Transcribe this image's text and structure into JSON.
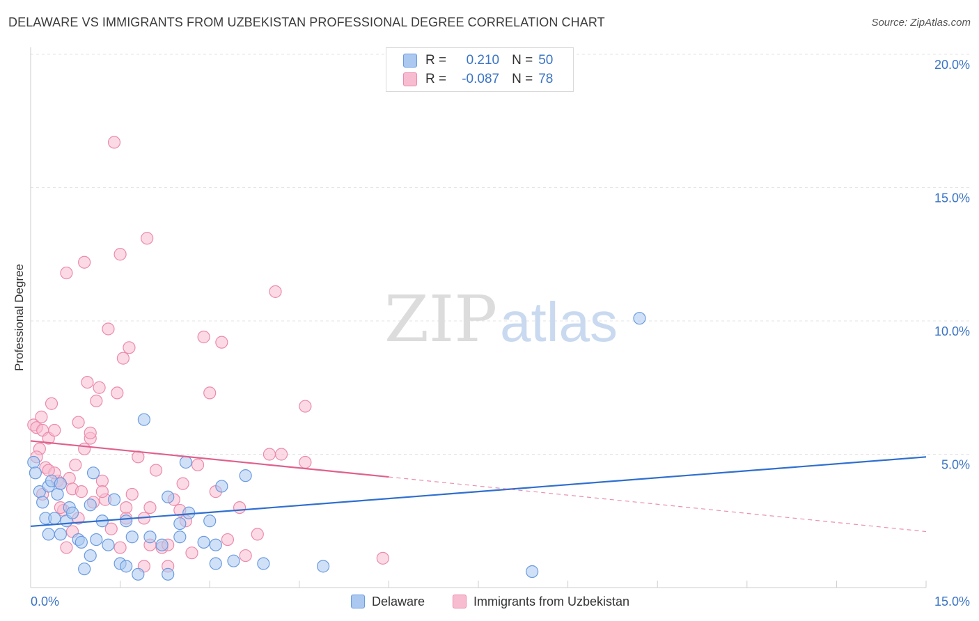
{
  "title": "DELAWARE VS IMMIGRANTS FROM UZBEKISTAN PROFESSIONAL DEGREE CORRELATION CHART",
  "source": "Source: ZipAtlas.com",
  "watermark": {
    "zip": "ZIP",
    "atlas": "atlas"
  },
  "legend": {
    "rows": [
      {
        "r_label": "R =",
        "r_value": "0.210",
        "n_label": "N =",
        "n_value": "50"
      },
      {
        "r_label": "R =",
        "r_value": "-0.087",
        "n_label": "N =",
        "n_value": "78"
      }
    ]
  },
  "colors": {
    "blue_fill": "#aac8f0",
    "blue_stroke": "#6a9be0",
    "blue_line": "#2f6fcf",
    "pink_fill": "#f7bcd0",
    "pink_stroke": "#ec8aaa",
    "pink_line": "#e0608e",
    "grid": "#e3e3e3",
    "tick_text": "#3b74c4"
  },
  "chart_data": {
    "type": "scatter",
    "title": "DELAWARE VS IMMIGRANTS FROM UZBEKISTAN PROFESSIONAL DEGREE CORRELATION CHART",
    "xlabel": "",
    "ylabel": "Professional Degree",
    "xlim": [
      0,
      15
    ],
    "ylim": [
      0,
      20
    ],
    "x_tick_labels": [
      "0.0%",
      "15.0%"
    ],
    "y_ticks": [
      5,
      10,
      15,
      20
    ],
    "y_tick_labels": [
      "5.0%",
      "10.0%",
      "15.0%",
      "20.0%"
    ],
    "series": [
      {
        "name": "Delaware",
        "r": 0.21,
        "n": 50,
        "trend": {
          "x0": 0,
          "y0": 2.3,
          "x1": 15,
          "y1": 4.9
        },
        "points": [
          [
            0.05,
            4.7
          ],
          [
            0.08,
            4.3
          ],
          [
            0.15,
            3.6
          ],
          [
            0.2,
            3.2
          ],
          [
            0.25,
            2.6
          ],
          [
            0.3,
            3.8
          ],
          [
            0.35,
            4.0
          ],
          [
            0.4,
            2.6
          ],
          [
            0.45,
            3.5
          ],
          [
            0.5,
            3.9
          ],
          [
            0.6,
            2.5
          ],
          [
            0.65,
            3.0
          ],
          [
            0.7,
            2.8
          ],
          [
            0.8,
            1.8
          ],
          [
            0.85,
            1.7
          ],
          [
            0.9,
            0.7
          ],
          [
            1.0,
            3.1
          ],
          [
            1.05,
            4.3
          ],
          [
            1.1,
            1.8
          ],
          [
            1.2,
            2.5
          ],
          [
            1.3,
            1.6
          ],
          [
            1.4,
            3.3
          ],
          [
            1.5,
            0.9
          ],
          [
            1.6,
            2.5
          ],
          [
            1.7,
            1.9
          ],
          [
            1.8,
            0.5
          ],
          [
            1.9,
            6.3
          ],
          [
            1.6,
            0.8
          ],
          [
            2.2,
            1.6
          ],
          [
            2.3,
            0.5
          ],
          [
            2.5,
            1.9
          ],
          [
            2.5,
            2.4
          ],
          [
            2.6,
            4.7
          ],
          [
            2.65,
            2.8
          ],
          [
            2.9,
            1.7
          ],
          [
            3.0,
            2.5
          ],
          [
            3.1,
            0.9
          ],
          [
            3.2,
            3.8
          ],
          [
            3.4,
            1.0
          ],
          [
            3.6,
            4.2
          ],
          [
            3.9,
            0.9
          ],
          [
            4.9,
            0.8
          ],
          [
            10.2,
            10.1
          ],
          [
            8.4,
            0.6
          ],
          [
            0.5,
            2.0
          ],
          [
            1.0,
            1.2
          ],
          [
            2.0,
            1.9
          ],
          [
            3.1,
            1.6
          ],
          [
            2.3,
            3.4
          ],
          [
            0.3,
            2.0
          ]
        ]
      },
      {
        "name": "Immigrants from Uzbekistan",
        "r": -0.087,
        "n": 78,
        "trend": {
          "x0": 0,
          "y0": 5.5,
          "x1": 6,
          "y1": 4.15
        },
        "trend_dashed": {
          "x0": 6,
          "y0": 4.15,
          "x1": 15,
          "y1": 2.1
        },
        "points": [
          [
            0.05,
            6.1
          ],
          [
            0.1,
            6.0
          ],
          [
            0.15,
            5.2
          ],
          [
            0.18,
            6.4
          ],
          [
            0.2,
            5.9
          ],
          [
            0.25,
            4.5
          ],
          [
            0.3,
            5.6
          ],
          [
            0.35,
            6.9
          ],
          [
            0.4,
            5.9
          ],
          [
            0.45,
            4.0
          ],
          [
            0.5,
            3.9
          ],
          [
            0.55,
            2.9
          ],
          [
            0.6,
            11.8
          ],
          [
            0.65,
            4.1
          ],
          [
            0.7,
            3.7
          ],
          [
            0.75,
            4.6
          ],
          [
            0.8,
            6.2
          ],
          [
            0.85,
            3.6
          ],
          [
            0.9,
            12.2
          ],
          [
            0.95,
            7.7
          ],
          [
            1.0,
            5.6
          ],
          [
            1.05,
            3.2
          ],
          [
            1.1,
            7.0
          ],
          [
            1.15,
            7.5
          ],
          [
            1.2,
            4.0
          ],
          [
            1.25,
            3.3
          ],
          [
            1.3,
            9.7
          ],
          [
            1.35,
            2.2
          ],
          [
            1.4,
            16.7
          ],
          [
            1.45,
            7.3
          ],
          [
            1.5,
            12.5
          ],
          [
            1.55,
            8.6
          ],
          [
            1.6,
            3.0
          ],
          [
            1.65,
            9.0
          ],
          [
            1.7,
            3.5
          ],
          [
            1.8,
            4.9
          ],
          [
            1.9,
            2.6
          ],
          [
            1.95,
            13.1
          ],
          [
            2.0,
            3.0
          ],
          [
            2.1,
            4.4
          ],
          [
            2.2,
            1.5
          ],
          [
            2.3,
            0.8
          ],
          [
            2.4,
            3.3
          ],
          [
            2.5,
            2.9
          ],
          [
            2.55,
            3.9
          ],
          [
            2.6,
            2.5
          ],
          [
            2.7,
            1.3
          ],
          [
            2.8,
            4.6
          ],
          [
            2.9,
            9.4
          ],
          [
            3.0,
            7.3
          ],
          [
            3.1,
            3.6
          ],
          [
            3.2,
            9.2
          ],
          [
            3.3,
            1.8
          ],
          [
            3.5,
            3.0
          ],
          [
            3.6,
            1.2
          ],
          [
            3.8,
            2.0
          ],
          [
            4.0,
            5.0
          ],
          [
            4.1,
            11.1
          ],
          [
            4.2,
            5.0
          ],
          [
            4.6,
            6.8
          ],
          [
            4.6,
            4.7
          ],
          [
            5.9,
            1.1
          ],
          [
            0.1,
            4.9
          ],
          [
            0.4,
            4.3
          ],
          [
            0.7,
            2.1
          ],
          [
            0.2,
            3.5
          ],
          [
            1.0,
            5.8
          ],
          [
            0.3,
            4.4
          ],
          [
            1.5,
            1.5
          ],
          [
            2.0,
            1.6
          ],
          [
            1.2,
            3.6
          ],
          [
            0.9,
            5.2
          ],
          [
            0.5,
            3.0
          ],
          [
            1.6,
            2.6
          ],
          [
            2.3,
            1.6
          ],
          [
            0.8,
            2.6
          ],
          [
            0.6,
            1.5
          ],
          [
            1.9,
            0.8
          ]
        ]
      }
    ]
  },
  "bottom_legend": {
    "items": [
      {
        "label": "Delaware"
      },
      {
        "label": "Immigrants from Uzbekistan"
      }
    ]
  }
}
